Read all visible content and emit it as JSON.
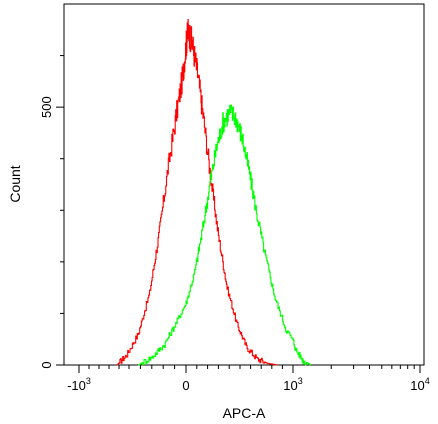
{
  "chart_data": {
    "type": "line",
    "xlabel": "APC-A",
    "ylabel": "Count",
    "xscale": "biexponential",
    "x_ticks": [
      {
        "value": -1000,
        "label": "-10",
        "exp": "3"
      },
      {
        "value": 0,
        "label": "0",
        "exp": ""
      },
      {
        "value": 1000,
        "label": "10",
        "exp": "3"
      },
      {
        "value": 10000,
        "label": "10",
        "exp": "4"
      }
    ],
    "y_ticks": [
      {
        "value": 0,
        "label": "0"
      },
      {
        "value": 500,
        "label": "500"
      }
    ],
    "xlim": [
      -1300,
      10000
    ],
    "ylim": [
      0,
      700
    ],
    "grid": false,
    "series": [
      {
        "color": "#ff0000",
        "x": [
          -620,
          -520,
          -420,
          -320,
          -240,
          -160,
          -90,
          -30,
          0,
          20,
          60,
          110,
          160,
          230,
          300,
          380,
          470,
          560,
          660,
          760,
          850
        ],
        "y": [
          0,
          20,
          60,
          140,
          250,
          380,
          480,
          560,
          620,
          650,
          620,
          560,
          480,
          360,
          250,
          150,
          80,
          35,
          12,
          3,
          0
        ]
      },
      {
        "color": "#00ff00",
        "x": [
          -420,
          -300,
          -190,
          -90,
          0,
          80,
          150,
          220,
          280,
          340,
          400,
          460,
          520,
          590,
          660,
          740,
          830,
          930,
          1050,
          1200,
          1380
        ],
        "y": [
          0,
          15,
          40,
          80,
          120,
          180,
          260,
          350,
          420,
          470,
          490,
          480,
          440,
          370,
          290,
          210,
          130,
          70,
          30,
          8,
          0
        ]
      }
    ]
  }
}
